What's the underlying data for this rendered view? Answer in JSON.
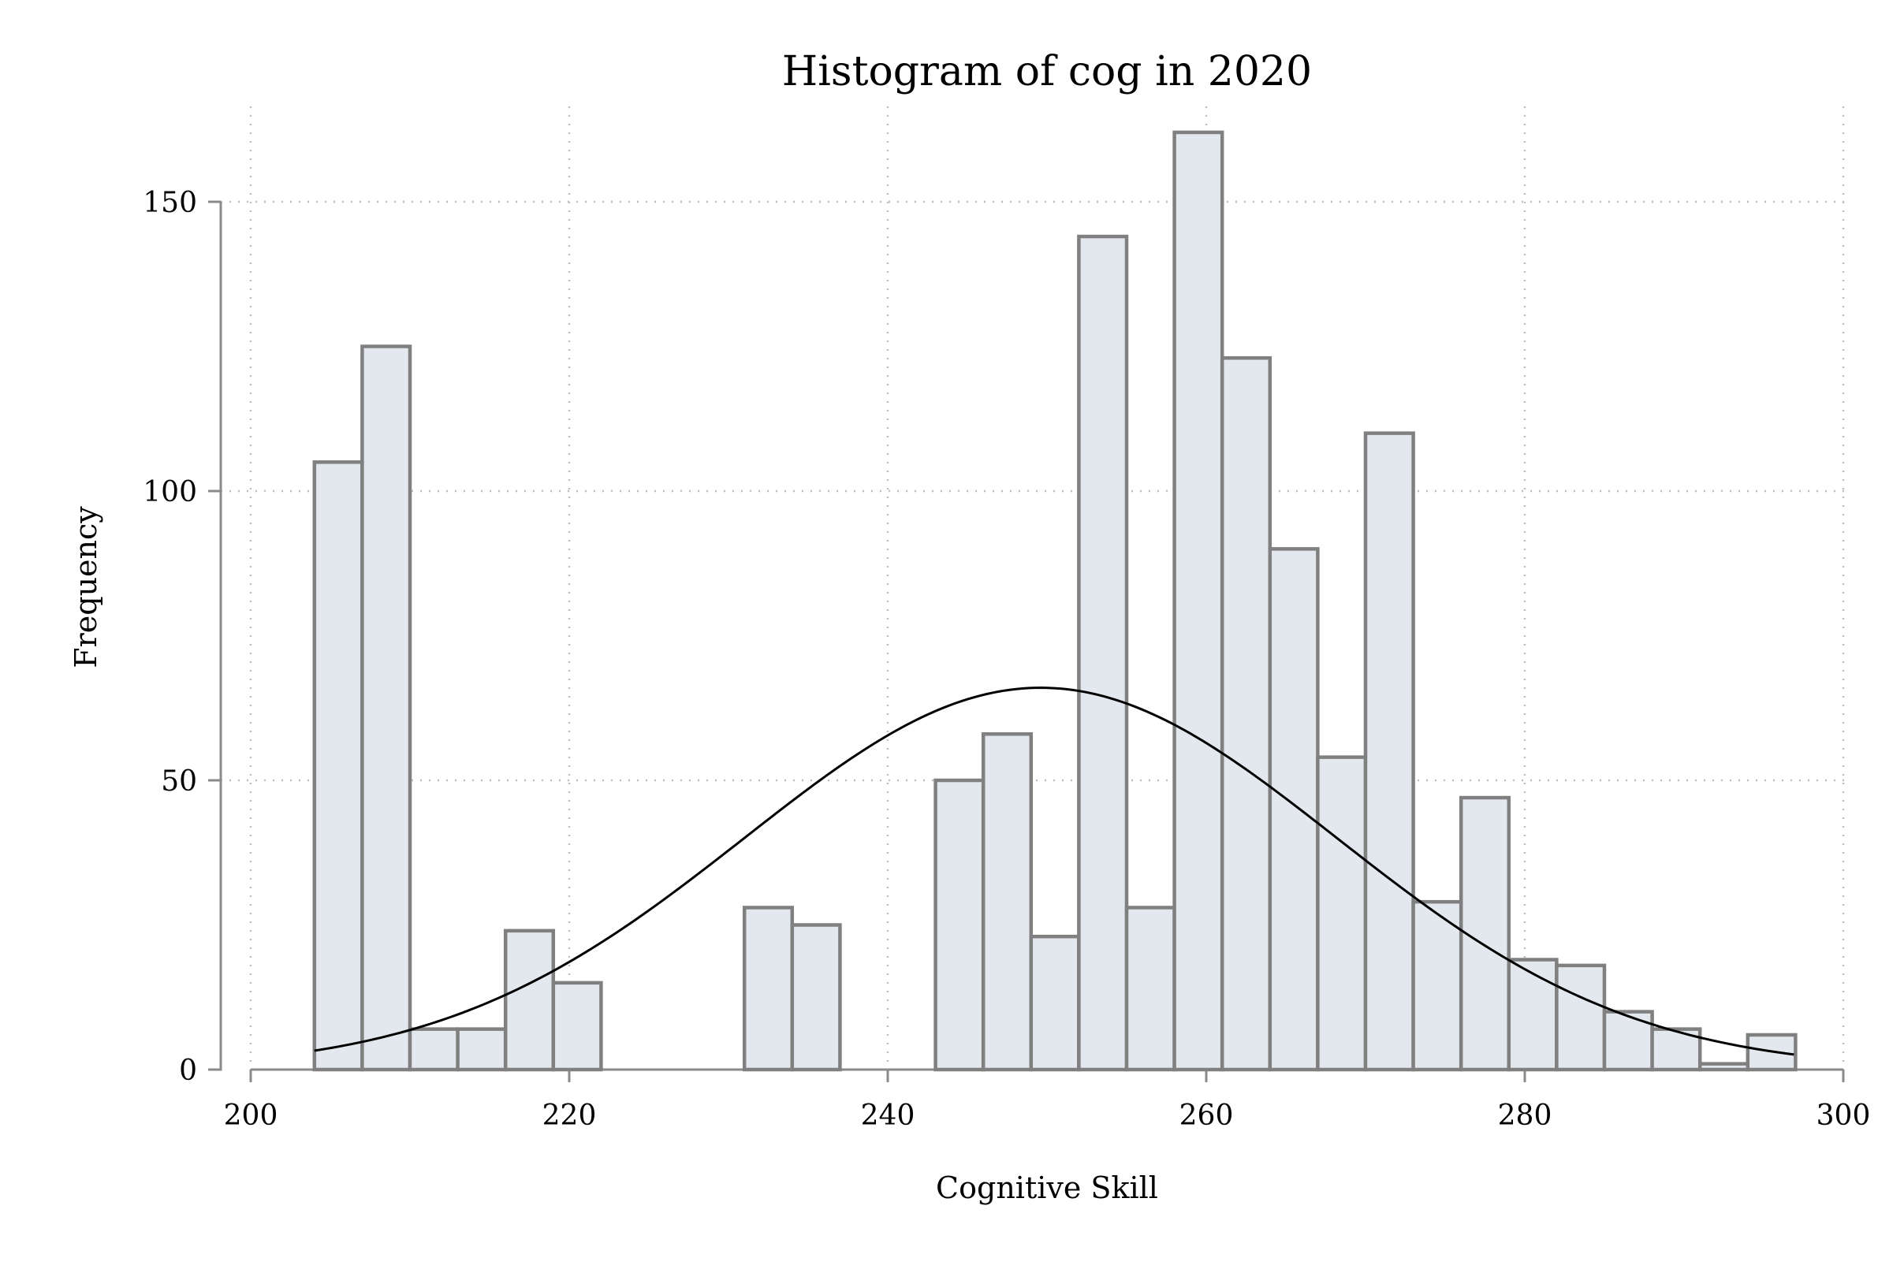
{
  "chart_data": {
    "type": "bar",
    "title": "Histogram of cog in 2020",
    "xlabel": "Cognitive Skill",
    "ylabel": "Frequency",
    "xlim": [
      200,
      300
    ],
    "ylim": [
      0,
      162
    ],
    "xticks": [
      200,
      220,
      240,
      260,
      280,
      300
    ],
    "yticks": [
      0,
      50,
      100,
      150
    ],
    "grid": true,
    "bin_width": 3.0,
    "bins": [
      {
        "x0": 204.0,
        "value": 105
      },
      {
        "x0": 207.0,
        "value": 125
      },
      {
        "x0": 210.0,
        "value": 7
      },
      {
        "x0": 213.0,
        "value": 7
      },
      {
        "x0": 216.0,
        "value": 24
      },
      {
        "x0": 219.0,
        "value": 15
      },
      {
        "x0": 231.0,
        "value": 28
      },
      {
        "x0": 234.0,
        "value": 25
      },
      {
        "x0": 243.0,
        "value": 50
      },
      {
        "x0": 246.0,
        "value": 58
      },
      {
        "x0": 249.0,
        "value": 23
      },
      {
        "x0": 252.0,
        "value": 144
      },
      {
        "x0": 255.0,
        "value": 28
      },
      {
        "x0": 258.0,
        "value": 162
      },
      {
        "x0": 261.0,
        "value": 123
      },
      {
        "x0": 264.0,
        "value": 90
      },
      {
        "x0": 267.0,
        "value": 54
      },
      {
        "x0": 270.0,
        "value": 110
      },
      {
        "x0": 273.0,
        "value": 29
      },
      {
        "x0": 276.0,
        "value": 47
      },
      {
        "x0": 279.0,
        "value": 19
      },
      {
        "x0": 282.0,
        "value": 18
      },
      {
        "x0": 285.0,
        "value": 10
      },
      {
        "x0": 288.0,
        "value": 7
      },
      {
        "x0": 291.0,
        "value": 1
      },
      {
        "x0": 294.0,
        "value": 6
      }
    ],
    "normal_curve": {
      "mean": 249.6,
      "sd": 18.6,
      "peak": 66,
      "x_range": [
        204.0,
        296.9
      ]
    }
  }
}
